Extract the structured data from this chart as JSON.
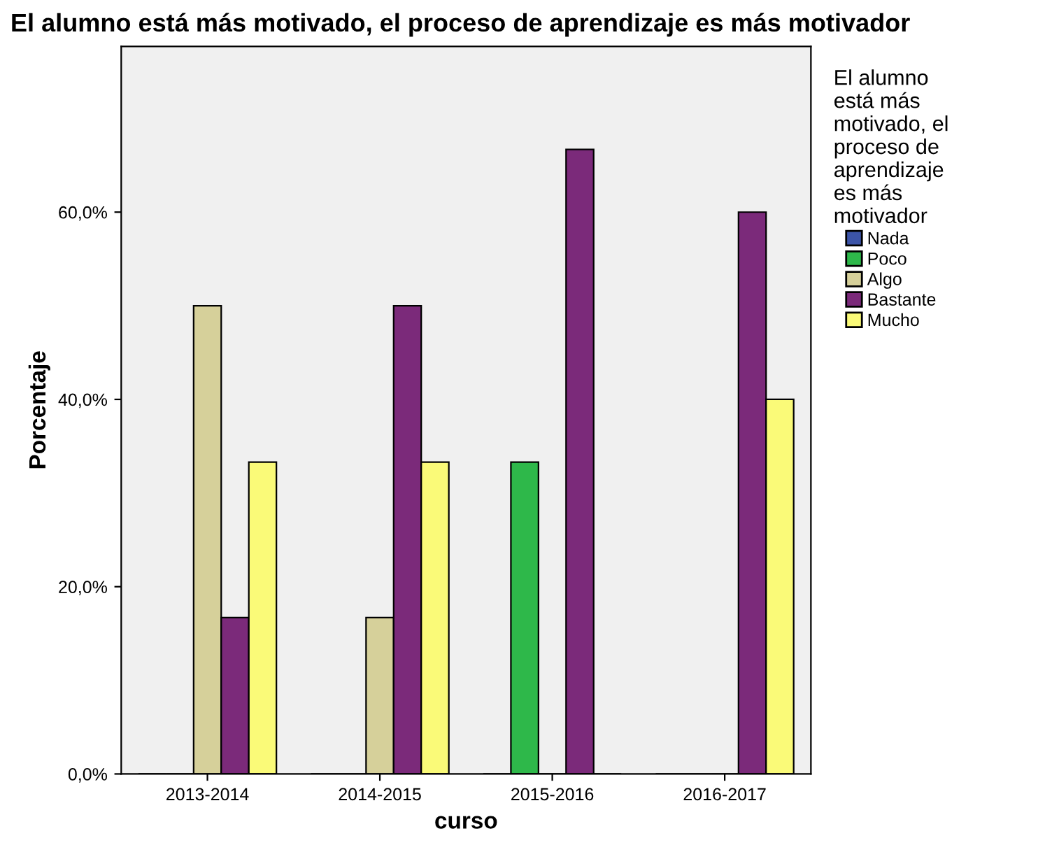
{
  "chart_data": {
    "type": "bar",
    "title": "El alumno está más motivado, el proceso de aprendizaje es más motivador",
    "xlabel": "curso",
    "ylabel": "Porcentaje",
    "legend_title": "El alumno está más motivado, el proceso de aprendizaje es más motivador",
    "categories": [
      "2013-2014",
      "2014-2015",
      "2015-2016",
      "2016-2017"
    ],
    "series": [
      {
        "name": "Nada",
        "color": "#3c54a8",
        "values": [
          0,
          0,
          0,
          0
        ]
      },
      {
        "name": "Poco",
        "color": "#2eb84a",
        "values": [
          0,
          0,
          33.3,
          0
        ]
      },
      {
        "name": "Algo",
        "color": "#d6d09a",
        "values": [
          50,
          16.7,
          0,
          0
        ]
      },
      {
        "name": "Bastante",
        "color": "#7b2a7a",
        "values": [
          16.7,
          50,
          66.7,
          60
        ]
      },
      {
        "name": "Mucho",
        "color": "#fafa78",
        "values": [
          33.3,
          33.3,
          0,
          40
        ]
      }
    ],
    "ylim": [
      0,
      77.7
    ],
    "yticks": [
      {
        "value": 0,
        "label": "0,0%"
      },
      {
        "value": 20,
        "label": "20,0%"
      },
      {
        "value": 40,
        "label": "40,0%"
      },
      {
        "value": 60,
        "label": "60,0%"
      }
    ],
    "grid": false,
    "legend": "right"
  }
}
